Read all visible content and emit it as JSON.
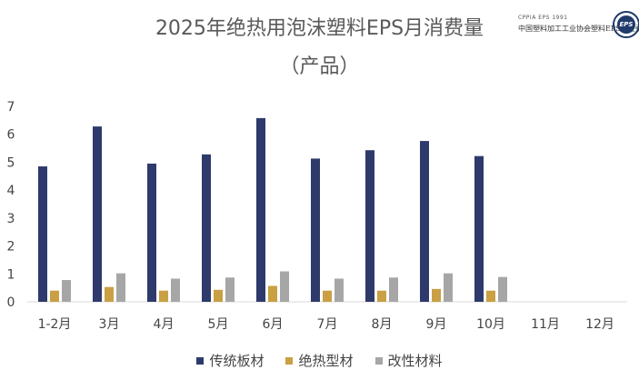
{
  "header": {
    "title_line1": "2025年绝热用泡沫塑料EPS月消费量",
    "title_line2": "（产品）"
  },
  "logo": {
    "line1": "CPPIA EPS 1991",
    "line2": "中国塑料加工工业协会塑料EPS专业委员会",
    "seal_text": "EPS"
  },
  "chart_data": {
    "type": "bar",
    "title": "2025年绝热用泡沫塑料EPS月消费量（产品）",
    "xlabel": "",
    "ylabel": "",
    "ylim": [
      0,
      7
    ],
    "yticks": [
      0,
      1,
      2,
      3,
      4,
      5,
      6,
      7
    ],
    "grid": false,
    "legend_position": "bottom",
    "categories": [
      "1-2月",
      "3月",
      "4月",
      "5月",
      "6月",
      "7月",
      "8月",
      "9月",
      "10月",
      "11月",
      "12月"
    ],
    "series": [
      {
        "name": "传统板材",
        "color": "#2e3a6b",
        "values": [
          4.85,
          6.28,
          4.95,
          5.28,
          6.58,
          5.13,
          5.43,
          5.76,
          5.22,
          null,
          null
        ]
      },
      {
        "name": "绝热型材",
        "color": "#c9a043",
        "values": [
          0.4,
          0.53,
          0.4,
          0.43,
          0.57,
          0.4,
          0.4,
          0.46,
          0.4,
          null,
          null
        ]
      },
      {
        "name": "改性材料",
        "color": "#a6a6a6",
        "values": [
          0.78,
          1.02,
          0.83,
          0.87,
          1.09,
          0.83,
          0.87,
          1.02,
          0.89,
          null,
          null
        ]
      }
    ]
  }
}
